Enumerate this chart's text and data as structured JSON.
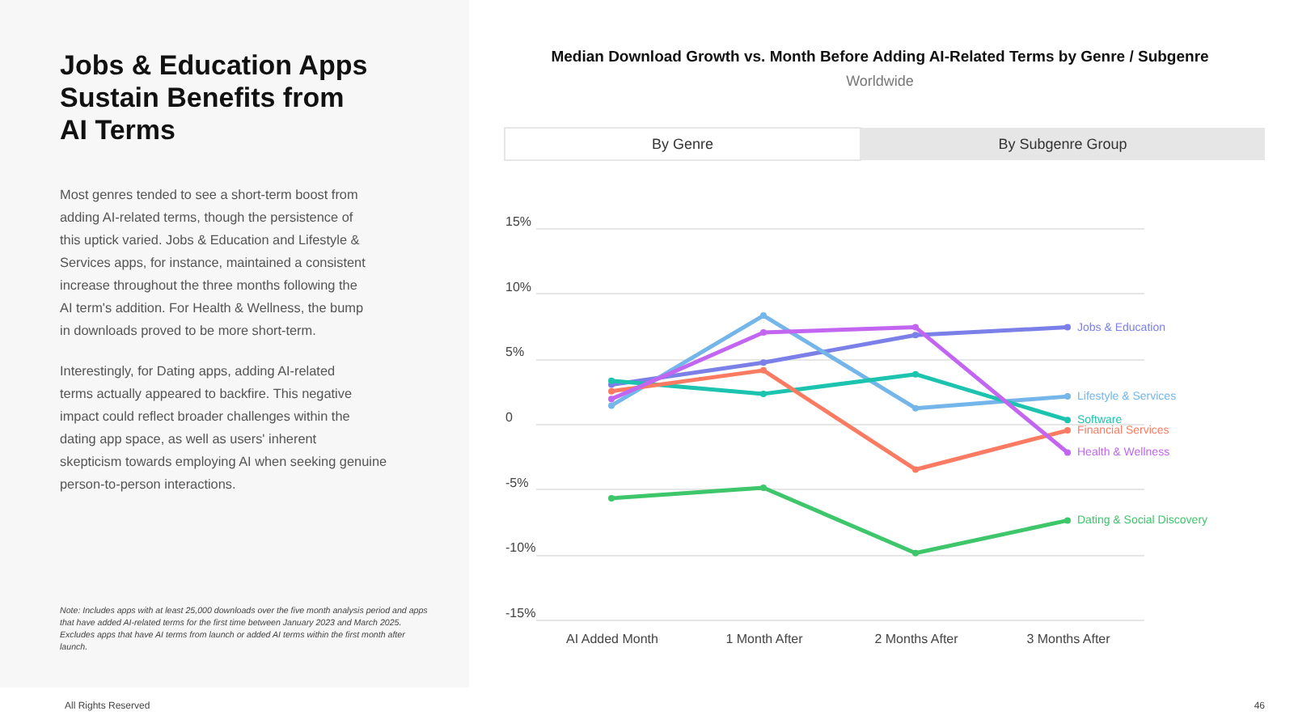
{
  "chart_data": {
    "type": "line",
    "title": "Median Download Growth vs. Month Before Adding AI-Related Terms by Genre / Subgenre",
    "subtitle": "Worldwide",
    "categories": [
      "AI Added Month",
      "1 Month After",
      "2 Months After",
      "3 Months After"
    ],
    "series": [
      {
        "name": "Jobs & Education",
        "color": "#7b7fe8",
        "values": [
          3.0,
          4.7,
          6.8,
          7.4
        ]
      },
      {
        "name": "Lifestyle & Services",
        "color": "#74b5ea",
        "values": [
          1.4,
          8.3,
          1.2,
          2.1
        ]
      },
      {
        "name": "Software",
        "color": "#1cc4b0",
        "values": [
          3.3,
          2.3,
          3.8,
          0.3
        ]
      },
      {
        "name": "Financial Services",
        "color": "#fb7b62",
        "values": [
          2.5,
          4.1,
          -3.5,
          -0.5
        ]
      },
      {
        "name": "Health & Wellness",
        "color": "#c266f2",
        "values": [
          1.9,
          7.0,
          7.4,
          -2.2
        ]
      },
      {
        "name": "Dating & Social Discovery",
        "color": "#3ec66b",
        "values": [
          -5.7,
          -4.9,
          -9.9,
          -7.4
        ]
      }
    ],
    "ylim": [
      -15,
      15
    ],
    "yticks": [
      {
        "value": -15,
        "label": "-15%"
      },
      {
        "value": -10,
        "label": "-10%"
      },
      {
        "value": -5,
        "label": "-5%"
      },
      0,
      {
        "value": 5,
        "label": "5%"
      },
      {
        "value": 10,
        "label": "10%"
      },
      {
        "value": 15,
        "label": "15%"
      }
    ],
    "grid": "y",
    "marker": "circle",
    "line_style": "solid",
    "annotations": [
      "Jobs & Education Apps Sustain Benefits from AI Terms",
      "Most genres tended to see a short-term boost from adding AI-related terms, though the persistence of this uptick varied. Jobs & Education and Lifestyle & Services apps, for instance, maintained a consistent increase throughout the three months following the AI term's addition. For Health & Wellness, the bump in downloads proved to be more short-term.",
      "Interestingly, for Dating apps, adding AI-related terms actually appeared to backfire. This negative impact could reflect broader challenges within the dating app space, as well as users' inherent skepticism towards employing AI when seeking genuine person-to-person interactions.",
      "Note: Includes apps with at least 25,000 downloads over the five month analysis period and apps that have added AI-related terms for the first time between January 2023 and March 2025. Excludes apps that have AI terms from launch or added AI terms within the first month after launch.",
      "All Rights Reserved",
      "46",
      "By Genre",
      "By Subgenre Group"
    ]
  }
}
